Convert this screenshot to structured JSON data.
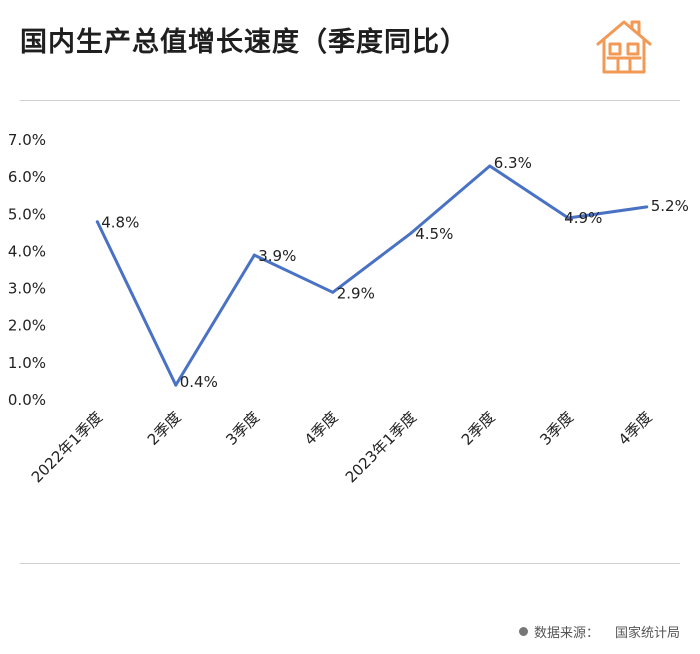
{
  "title": "国内生产总值增长速度（季度同比）",
  "source": {
    "label": "数据来源：",
    "value": "国家统计局"
  },
  "logo": {
    "icon": "house-icon",
    "color": "#f29a55"
  },
  "chart_data": {
    "type": "line",
    "title": "国内生产总值增长速度（季度同比）",
    "categories": [
      "2022年1季度",
      "2季度",
      "3季度",
      "4季度",
      "2023年1季度",
      "2季度",
      "3季度",
      "4季度"
    ],
    "series": [
      {
        "values": [
          4.8,
          0.4,
          3.9,
          2.9,
          4.5,
          6.3,
          4.9,
          5.2
        ],
        "color": "#4a72c4"
      }
    ],
    "data_labels": [
      "4.8%",
      "0.4%",
      "3.9%",
      "2.9%",
      "4.5%",
      "6.3%",
      "4.9%",
      "5.2%"
    ],
    "yticks": [
      "0.0%",
      "1.0%",
      "2.0%",
      "3.0%",
      "4.0%",
      "5.0%",
      "6.0%",
      "7.0%"
    ],
    "ylim": [
      0,
      7
    ],
    "xlabel": "",
    "ylabel": "",
    "grid": false,
    "legend": "none"
  }
}
